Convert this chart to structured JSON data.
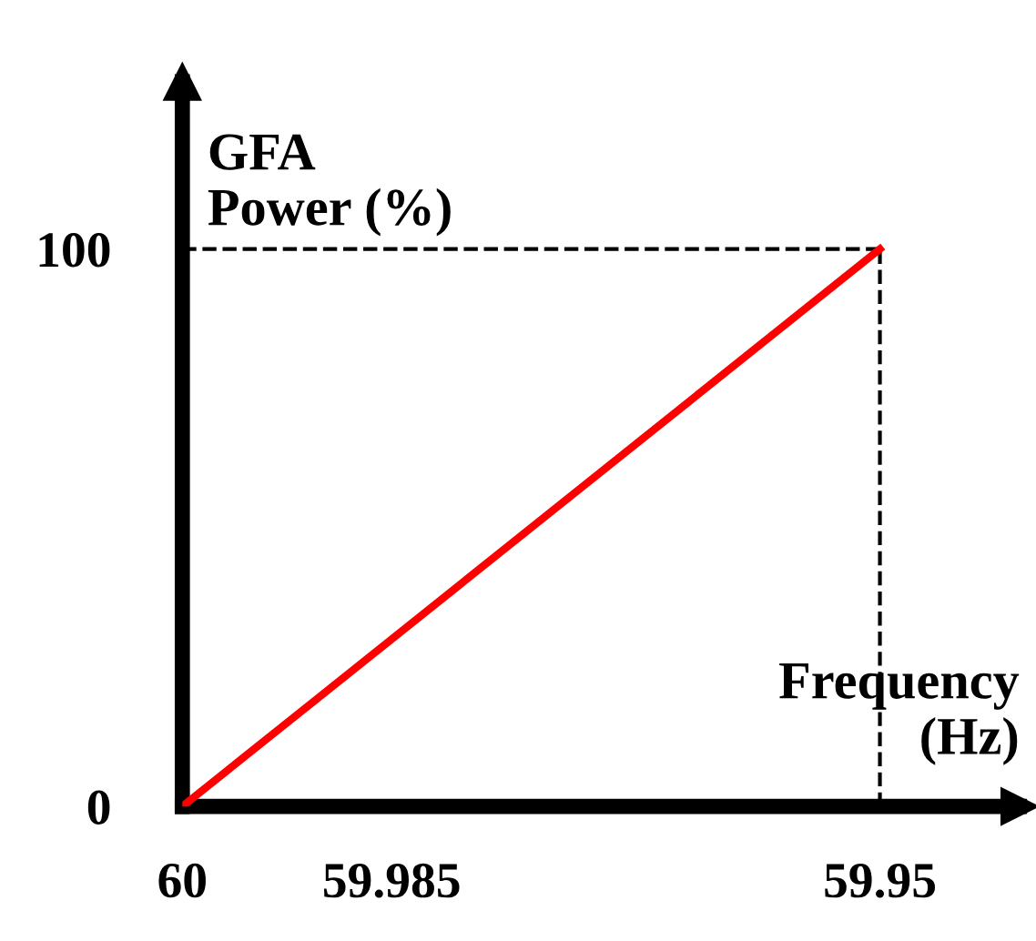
{
  "chart_data": {
    "type": "line",
    "xlabel": "Frequency\n(Hz)",
    "ylabel": "GFA\nPower (%)",
    "x": [
      60,
      59.95
    ],
    "series": [
      {
        "color": "#ff0000",
        "values": [
          0,
          100
        ]
      }
    ],
    "xlim": [
      60,
      59.94
    ],
    "ylim": [
      0,
      130
    ],
    "xticks": [
      60,
      59.985,
      59.95
    ],
    "yticks": [
      0,
      100
    ],
    "ref_lines": [
      {
        "axis": "y",
        "value": 100,
        "line_style": "dashed",
        "color": "#000000"
      },
      {
        "axis": "x",
        "value": 59.95,
        "line_style": "dashed",
        "color": "#000000"
      }
    ],
    "grid": false,
    "legend": false,
    "marker": "none",
    "line_style": "solid"
  }
}
